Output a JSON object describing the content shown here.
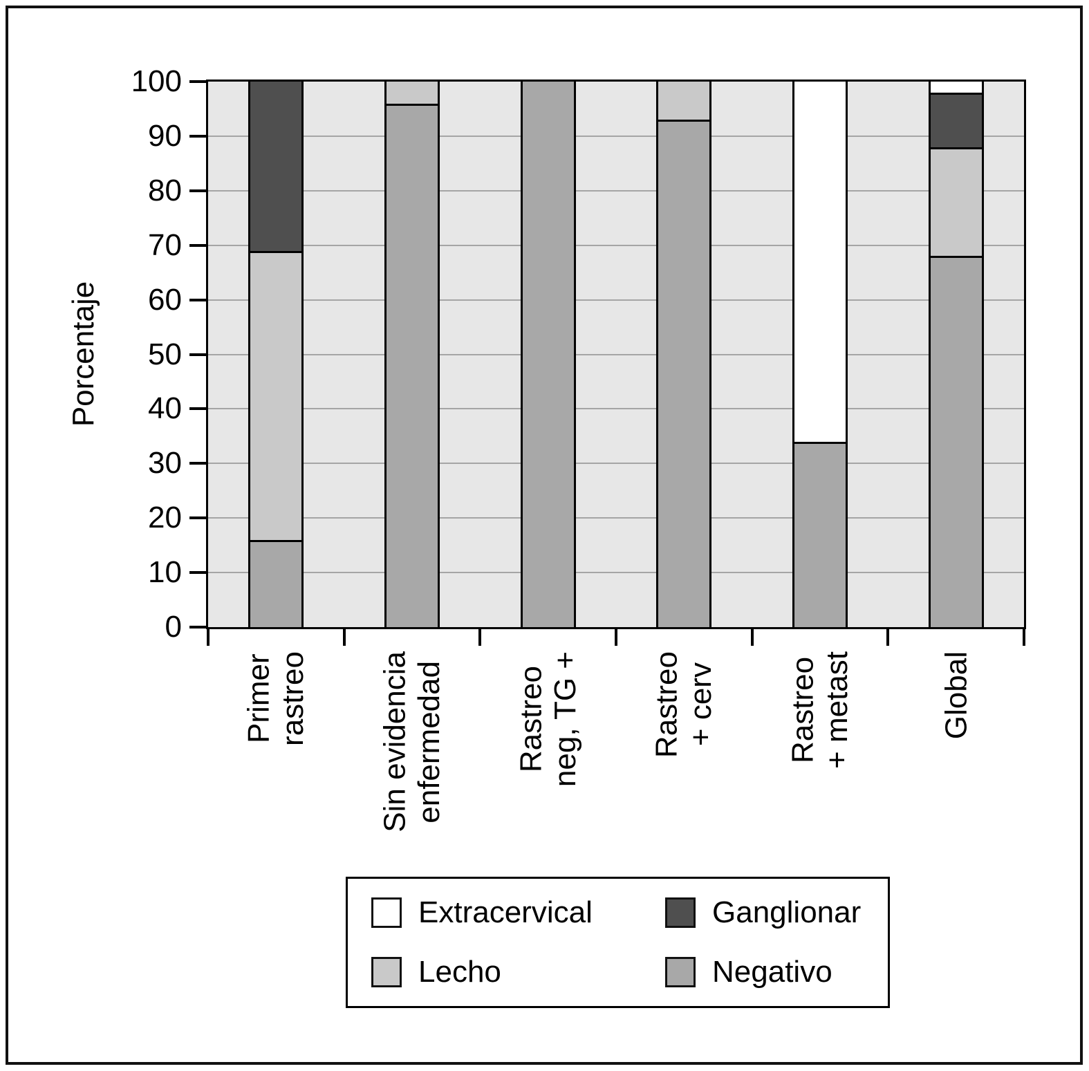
{
  "chart_data": {
    "type": "bar",
    "stacked": true,
    "title": "",
    "xlabel": "",
    "ylabel": "Porcentaje",
    "ylim": [
      0,
      100
    ],
    "yticks": [
      0,
      10,
      20,
      30,
      40,
      50,
      60,
      70,
      80,
      90,
      100
    ],
    "grid": true,
    "plot_background": "#e7e7e7",
    "gridline_color": "#a5a5a5",
    "bar_outline_color": "#000000",
    "categories": [
      "Primer\nrastreo",
      "Sin evidencia\nenfermedad",
      "Rastreo\nneg, TG +",
      "Rastreo\n+ cerv",
      "Rastreo\n+ metast",
      "Global"
    ],
    "series": [
      {
        "name": "Negativo",
        "color": "#a8a8a8",
        "values": [
          16,
          96,
          100,
          93,
          34,
          68
        ]
      },
      {
        "name": "Lecho",
        "color": "#c9c9c9",
        "values": [
          53,
          4,
          0,
          7,
          0,
          20
        ]
      },
      {
        "name": "Ganglionar",
        "color": "#4f4f4f",
        "values": [
          31,
          0,
          0,
          0,
          0,
          10
        ]
      },
      {
        "name": "Extracervical",
        "color": "#ffffff",
        "values": [
          0,
          0,
          0,
          0,
          66,
          2
        ]
      }
    ],
    "legend_position": "bottom",
    "legend": [
      {
        "label": "Extracervical",
        "color": "#ffffff"
      },
      {
        "label": "Ganglionar",
        "color": "#4f4f4f"
      },
      {
        "label": "Lecho",
        "color": "#c9c9c9"
      },
      {
        "label": "Negativo",
        "color": "#a8a8a8"
      }
    ]
  }
}
